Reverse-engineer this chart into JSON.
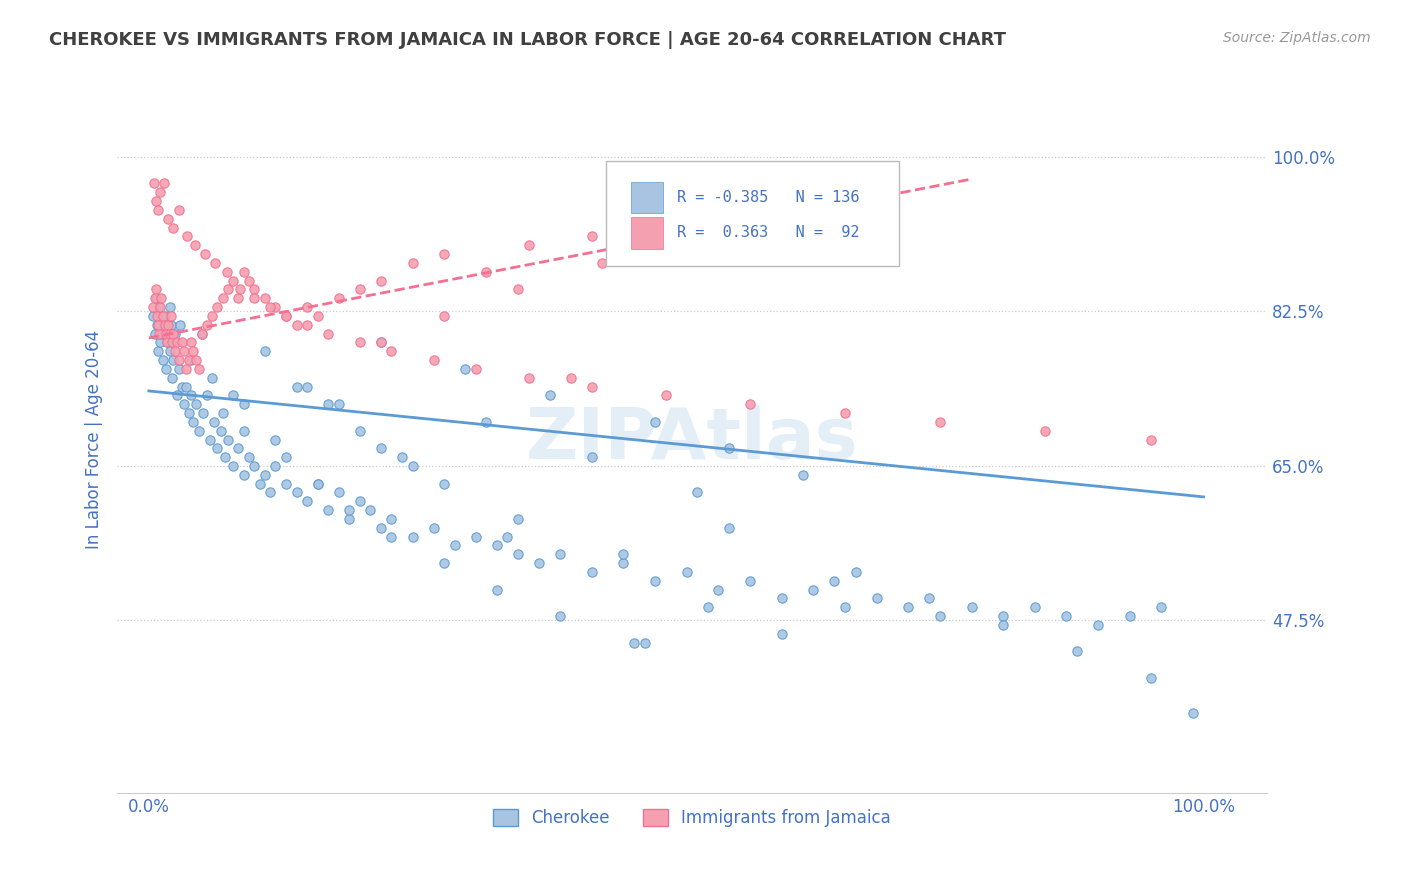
{
  "title": "CHEROKEE VS IMMIGRANTS FROM JAMAICA IN LABOR FORCE | AGE 20-64 CORRELATION CHART",
  "source": "Source: ZipAtlas.com",
  "ylabel": "In Labor Force | Age 20-64",
  "legend_r1": "R = -0.385",
  "legend_n1": "N = 136",
  "legend_r2": "R =  0.363",
  "legend_n2": "N =  92",
  "legend_label1": "Cherokee",
  "legend_label2": "Immigrants from Jamaica",
  "color_blue": "#a8c4e0",
  "color_pink": "#f4a0b0",
  "color_blue_line": "#5b9bd5",
  "color_pink_line": "#f47090",
  "color_text": "#4472c4",
  "ytick_labels": [
    "100.0%",
    "82.5%",
    "65.0%",
    "47.5%"
  ],
  "ytick_values": [
    1.0,
    0.825,
    0.65,
    0.475
  ],
  "xtick_labels": [
    "0.0%",
    "100.0%"
  ],
  "xtick_values": [
    0.0,
    1.0
  ],
  "xlim": [
    -0.03,
    1.06
  ],
  "ylim": [
    0.28,
    1.08
  ],
  "blue_trend_x": [
    0.0,
    1.0
  ],
  "blue_trend_y": [
    0.735,
    0.615
  ],
  "pink_trend_x": [
    0.0,
    0.78
  ],
  "pink_trend_y": [
    0.795,
    0.975
  ],
  "blue_scatter_x": [
    0.004,
    0.006,
    0.007,
    0.008,
    0.009,
    0.01,
    0.011,
    0.012,
    0.013,
    0.015,
    0.016,
    0.017,
    0.018,
    0.02,
    0.021,
    0.022,
    0.023,
    0.025,
    0.027,
    0.029,
    0.031,
    0.033,
    0.035,
    0.038,
    0.04,
    0.042,
    0.045,
    0.048,
    0.051,
    0.055,
    0.058,
    0.062,
    0.065,
    0.068,
    0.072,
    0.075,
    0.08,
    0.085,
    0.09,
    0.095,
    0.1,
    0.105,
    0.11,
    0.115,
    0.12,
    0.13,
    0.14,
    0.15,
    0.16,
    0.17,
    0.18,
    0.19,
    0.2,
    0.21,
    0.22,
    0.23,
    0.25,
    0.27,
    0.29,
    0.31,
    0.33,
    0.35,
    0.37,
    0.39,
    0.42,
    0.45,
    0.48,
    0.51,
    0.54,
    0.57,
    0.6,
    0.63,
    0.66,
    0.69,
    0.72,
    0.75,
    0.78,
    0.81,
    0.84,
    0.87,
    0.9,
    0.93,
    0.96,
    0.99,
    0.12,
    0.18,
    0.25,
    0.32,
    0.42,
    0.52,
    0.15,
    0.22,
    0.28,
    0.35,
    0.45,
    0.55,
    0.65,
    0.07,
    0.09,
    0.13,
    0.16,
    0.19,
    0.23,
    0.28,
    0.33,
    0.39,
    0.46,
    0.53,
    0.6,
    0.67,
    0.74,
    0.81,
    0.88,
    0.95,
    0.62,
    0.55,
    0.48,
    0.38,
    0.3,
    0.22,
    0.14,
    0.09,
    0.05,
    0.02,
    0.03,
    0.04,
    0.06,
    0.08,
    0.11,
    0.17,
    0.2,
    0.24,
    0.34,
    0.47
  ],
  "blue_scatter_y": [
    0.82,
    0.8,
    0.84,
    0.81,
    0.78,
    0.83,
    0.79,
    0.8,
    0.77,
    0.82,
    0.76,
    0.79,
    0.8,
    0.78,
    0.81,
    0.75,
    0.77,
    0.8,
    0.73,
    0.76,
    0.74,
    0.72,
    0.74,
    0.71,
    0.73,
    0.7,
    0.72,
    0.69,
    0.71,
    0.73,
    0.68,
    0.7,
    0.67,
    0.69,
    0.66,
    0.68,
    0.65,
    0.67,
    0.64,
    0.66,
    0.65,
    0.63,
    0.64,
    0.62,
    0.65,
    0.63,
    0.62,
    0.61,
    0.63,
    0.6,
    0.62,
    0.59,
    0.61,
    0.6,
    0.58,
    0.59,
    0.57,
    0.58,
    0.56,
    0.57,
    0.56,
    0.55,
    0.54,
    0.55,
    0.53,
    0.54,
    0.52,
    0.53,
    0.51,
    0.52,
    0.5,
    0.51,
    0.49,
    0.5,
    0.49,
    0.48,
    0.49,
    0.48,
    0.49,
    0.48,
    0.47,
    0.48,
    0.49,
    0.37,
    0.68,
    0.72,
    0.65,
    0.7,
    0.66,
    0.62,
    0.74,
    0.67,
    0.63,
    0.59,
    0.55,
    0.58,
    0.52,
    0.71,
    0.69,
    0.66,
    0.63,
    0.6,
    0.57,
    0.54,
    0.51,
    0.48,
    0.45,
    0.49,
    0.46,
    0.53,
    0.5,
    0.47,
    0.44,
    0.41,
    0.64,
    0.67,
    0.7,
    0.73,
    0.76,
    0.79,
    0.74,
    0.72,
    0.8,
    0.83,
    0.81,
    0.77,
    0.75,
    0.73,
    0.78,
    0.72,
    0.69,
    0.66,
    0.57,
    0.45
  ],
  "pink_scatter_x": [
    0.004,
    0.006,
    0.007,
    0.008,
    0.009,
    0.01,
    0.011,
    0.012,
    0.013,
    0.015,
    0.016,
    0.017,
    0.018,
    0.02,
    0.021,
    0.022,
    0.023,
    0.025,
    0.027,
    0.029,
    0.031,
    0.033,
    0.035,
    0.038,
    0.04,
    0.042,
    0.045,
    0.048,
    0.05,
    0.055,
    0.06,
    0.065,
    0.07,
    0.075,
    0.08,
    0.085,
    0.09,
    0.095,
    0.1,
    0.11,
    0.12,
    0.13,
    0.14,
    0.15,
    0.16,
    0.18,
    0.2,
    0.22,
    0.25,
    0.28,
    0.32,
    0.36,
    0.42,
    0.5,
    0.6,
    0.7,
    0.22,
    0.28,
    0.35,
    0.43,
    0.005,
    0.007,
    0.009,
    0.011,
    0.014,
    0.018,
    0.023,
    0.029,
    0.036,
    0.044,
    0.053,
    0.063,
    0.074,
    0.086,
    0.1,
    0.115,
    0.13,
    0.15,
    0.17,
    0.2,
    0.23,
    0.27,
    0.31,
    0.36,
    0.42,
    0.49,
    0.57,
    0.66,
    0.75,
    0.85,
    0.95,
    0.4
  ],
  "pink_scatter_y": [
    0.83,
    0.84,
    0.85,
    0.82,
    0.81,
    0.8,
    0.83,
    0.84,
    0.82,
    0.81,
    0.8,
    0.79,
    0.81,
    0.8,
    0.82,
    0.79,
    0.8,
    0.78,
    0.79,
    0.77,
    0.79,
    0.78,
    0.76,
    0.77,
    0.79,
    0.78,
    0.77,
    0.76,
    0.8,
    0.81,
    0.82,
    0.83,
    0.84,
    0.85,
    0.86,
    0.84,
    0.87,
    0.86,
    0.85,
    0.84,
    0.83,
    0.82,
    0.81,
    0.83,
    0.82,
    0.84,
    0.85,
    0.86,
    0.88,
    0.89,
    0.87,
    0.9,
    0.91,
    0.92,
    0.93,
    0.94,
    0.79,
    0.82,
    0.85,
    0.88,
    0.97,
    0.95,
    0.94,
    0.96,
    0.97,
    0.93,
    0.92,
    0.94,
    0.91,
    0.9,
    0.89,
    0.88,
    0.87,
    0.85,
    0.84,
    0.83,
    0.82,
    0.81,
    0.8,
    0.79,
    0.78,
    0.77,
    0.76,
    0.75,
    0.74,
    0.73,
    0.72,
    0.71,
    0.7,
    0.69,
    0.68,
    0.75
  ]
}
